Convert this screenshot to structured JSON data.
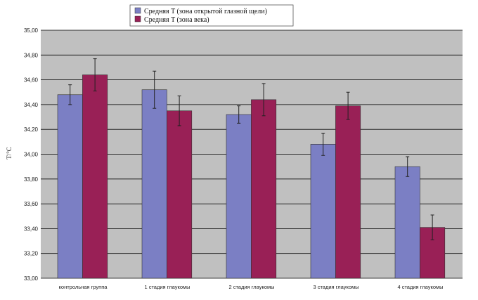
{
  "chart_data": {
    "type": "bar",
    "title": "",
    "xlabel": "",
    "ylabel": "T/°C",
    "ylim": [
      33.0,
      35.0
    ],
    "ytick_step": 0.2,
    "ytick_labels": [
      "33,00",
      "33,20",
      "33,40",
      "33,60",
      "33,80",
      "34,00",
      "34,20",
      "34,40",
      "34,60",
      "34,80",
      "35,00"
    ],
    "grid": true,
    "legend_position": "top-center",
    "categories": [
      "контрольная группа",
      "1 стадия глаукомы",
      "2 стадия глаукомы",
      "3 стадия глаукомы",
      "4 стадия глаукомы"
    ],
    "series": [
      {
        "name": "Средняя T (зона открытой глазной щели)",
        "color": "#7b7fc4",
        "values": [
          34.48,
          34.52,
          34.32,
          34.08,
          33.9
        ],
        "err": [
          0.08,
          0.15,
          0.07,
          0.09,
          0.08
        ]
      },
      {
        "name": "Средняя T (зона века)",
        "color": "#992056",
        "values": [
          34.64,
          34.35,
          34.44,
          34.39,
          33.41
        ],
        "err": [
          0.13,
          0.12,
          0.13,
          0.11,
          0.1
        ]
      }
    ],
    "colors": {
      "plot_bg": "#c0c0c0",
      "grid": "#000000"
    }
  }
}
